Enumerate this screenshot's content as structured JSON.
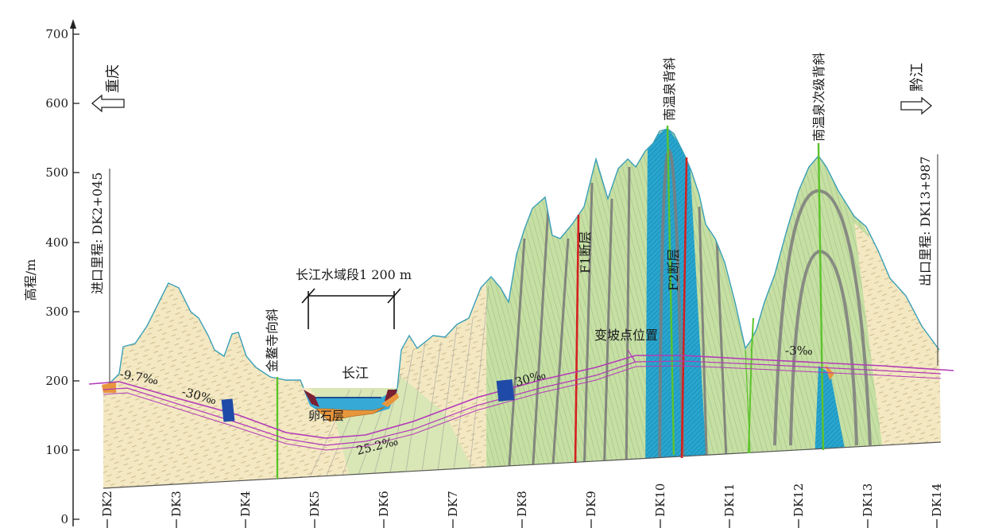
{
  "axis": {
    "y_label": "高程/m",
    "y_ticks": [
      "700",
      "600",
      "500",
      "400",
      "300",
      "200",
      "100",
      "0"
    ],
    "stations": [
      "DK2",
      "DK3",
      "DK4",
      "DK5",
      "DK6",
      "DK7",
      "DK8",
      "DK9",
      "DK10",
      "DK11",
      "DK12",
      "DK13",
      "DK14"
    ]
  },
  "directions": {
    "left": "重庆",
    "right": "黔江"
  },
  "mileage": {
    "entrance": "进口里程: DK2+045",
    "exit": "出口里程: DK13+987"
  },
  "structures": {
    "syncline": "金鳌寺向斜",
    "anticline_main": "南温泉背斜",
    "anticline_secondary": "南温泉次级背斜",
    "fault_f1": "F1断层",
    "fault_f2": "F2断层"
  },
  "river": {
    "span_label": "长江水域段1 200 m",
    "name": "长江",
    "layer": "卵石层"
  },
  "gradients": {
    "g1": "-9.7‰",
    "g2": "-30‰",
    "g3": "25.2‰",
    "g4": "30‰",
    "g5": "-3‰",
    "change_point": "变坡点位置"
  },
  "colors": {
    "sandstone": "#f3e8c2",
    "limestone": "#c6dfa3",
    "karst": "#27a6cf",
    "fault": "#d42020",
    "fold_axis": "#5cc32b",
    "tunnel": "#b33bb8",
    "water": "#37a9d6",
    "pebble": "#e8963c",
    "ground_edge": "#3a9fb7"
  }
}
